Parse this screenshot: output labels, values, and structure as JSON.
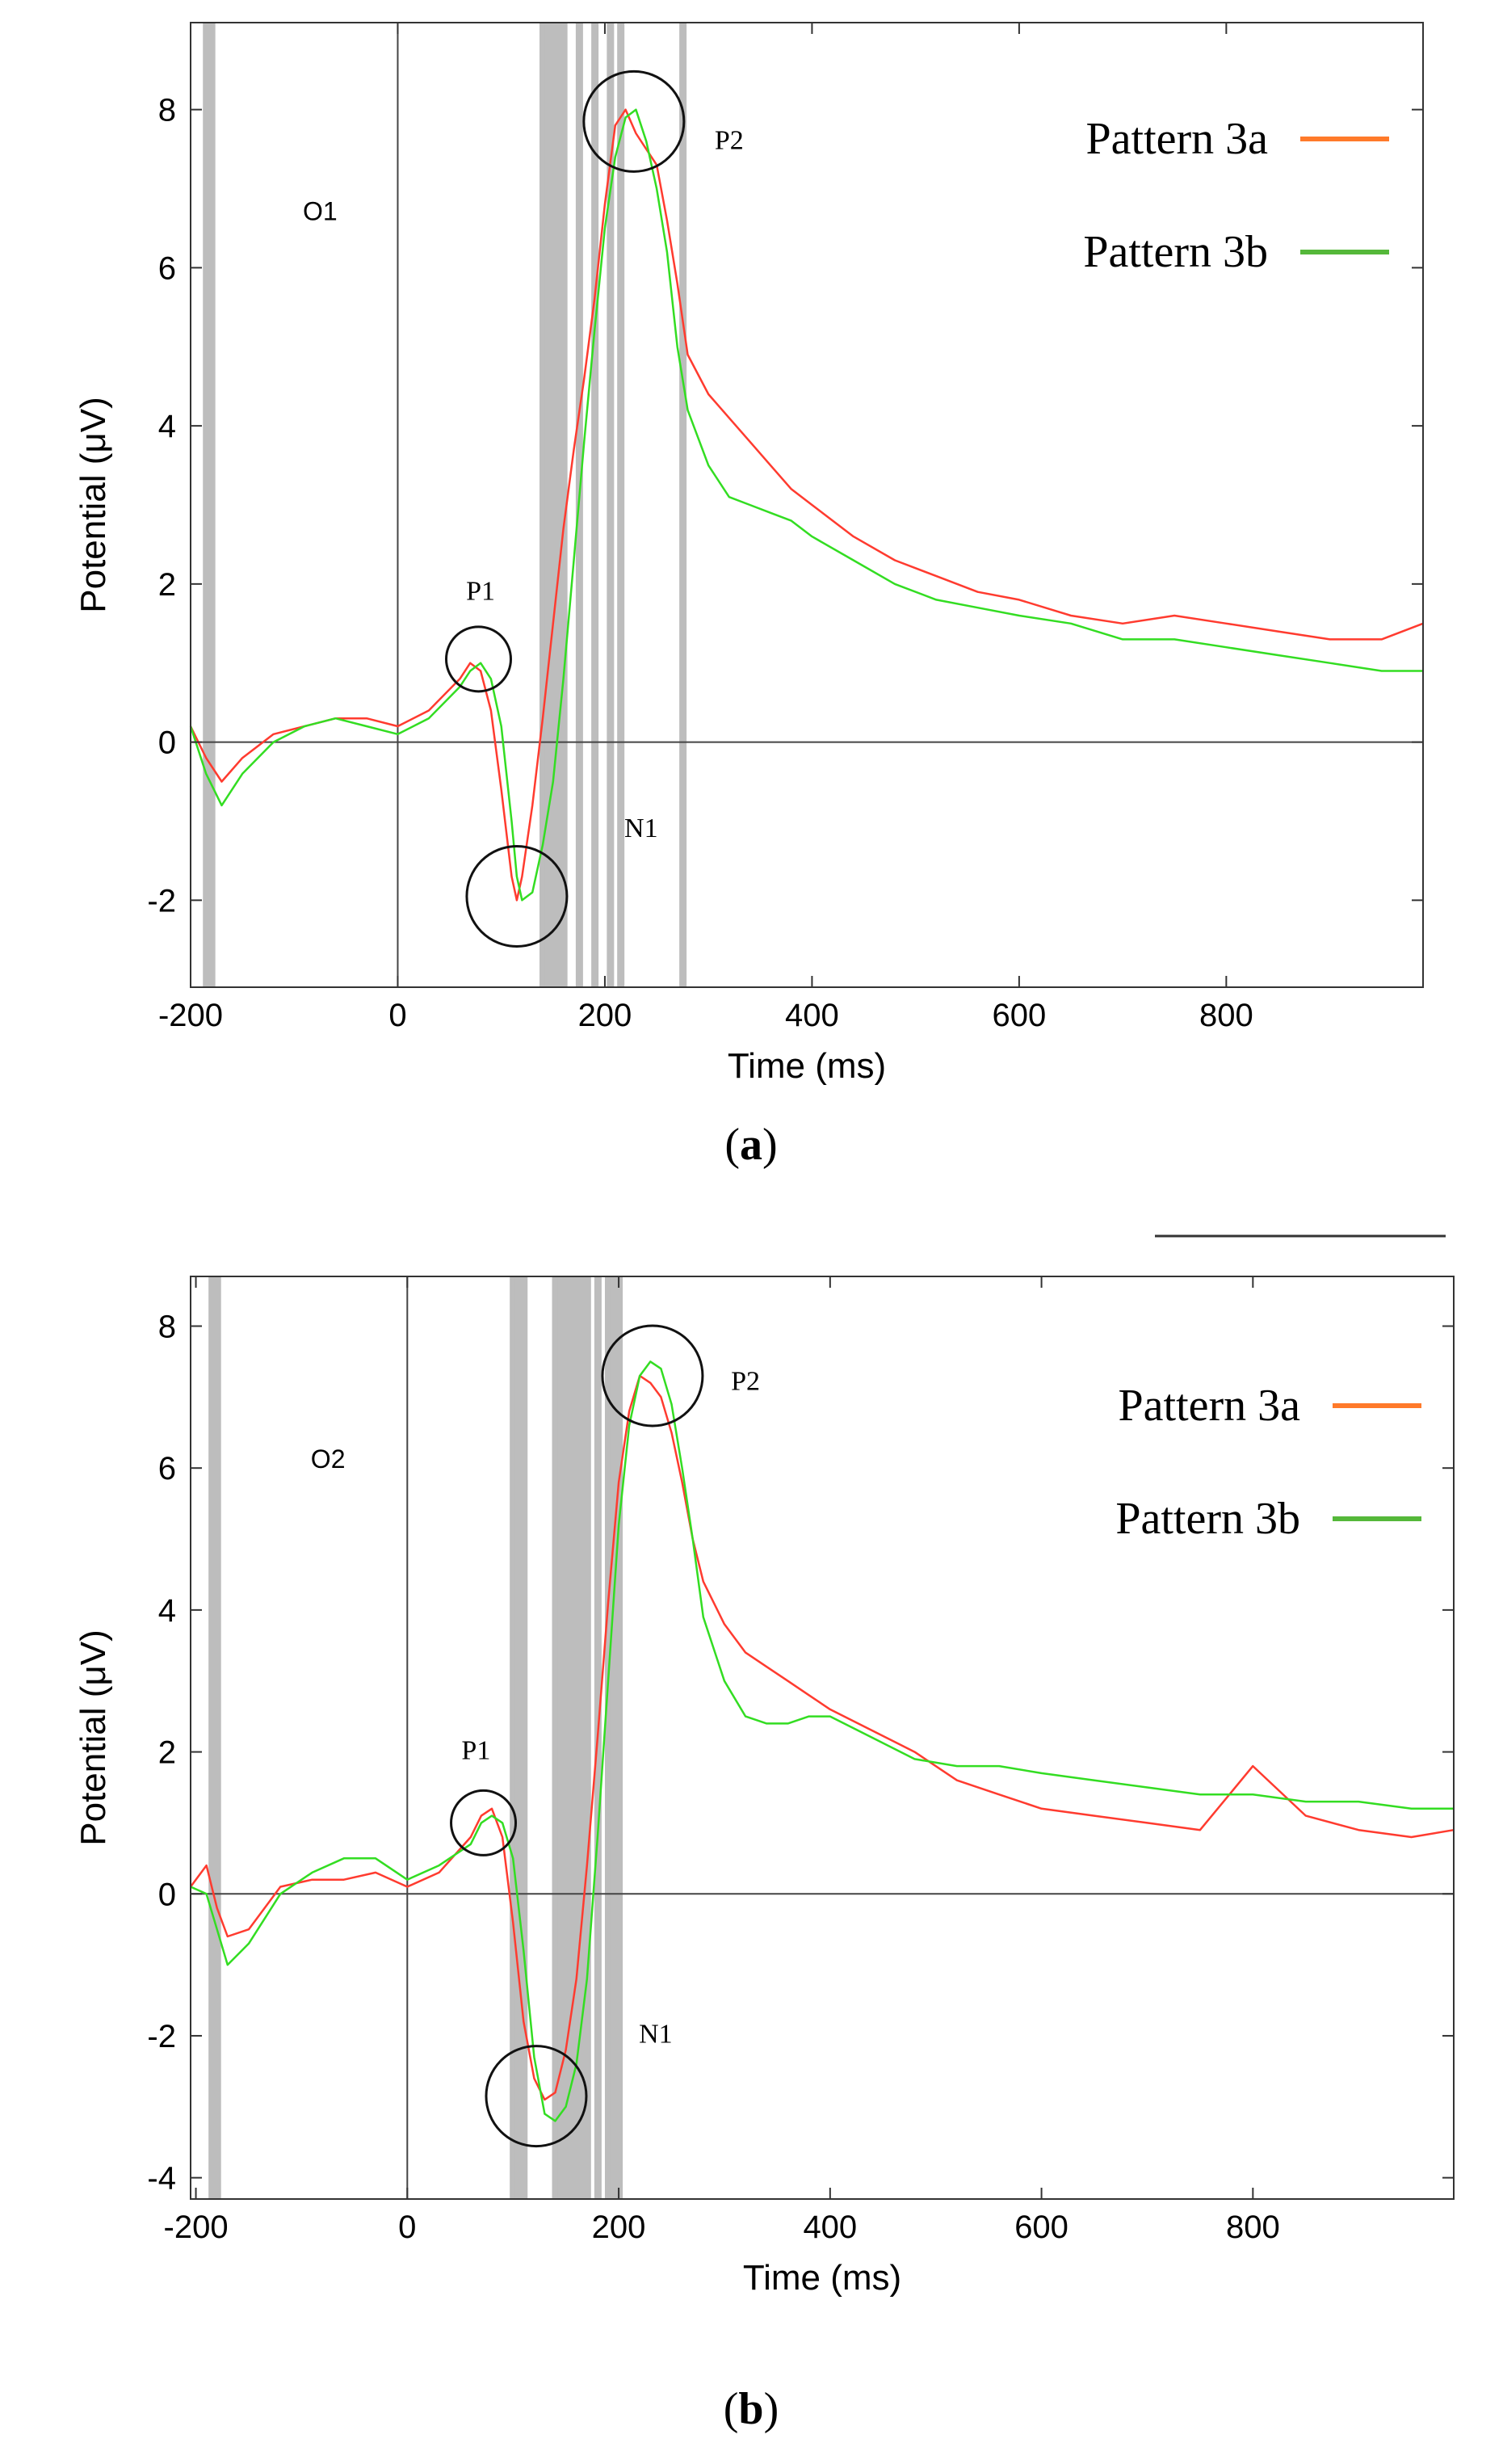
{
  "colors": {
    "pattern_a": "#ff3b2f",
    "pattern_b": "#33dd22",
    "legend_a": "#ff7a2a",
    "legend_b": "#55b83a",
    "shade": "#bdbdbd"
  },
  "chart_data": [
    {
      "type": "line",
      "panel_label": "a",
      "electrode": "O1",
      "xlabel": "Time (ms)",
      "ylabel": "Potential (μV)",
      "xlim": [
        -200,
        990
      ],
      "ylim": [
        -3.1,
        9.1
      ],
      "xticks": [
        -200,
        0,
        200,
        400,
        600,
        800
      ],
      "yticks": [
        -2,
        0,
        2,
        4,
        6,
        8
      ],
      "shaded_ms": [
        -185,
        -180,
        140,
        145,
        150,
        155,
        160,
        175,
        190,
        205,
        215,
        275
      ],
      "legend": [
        "Pattern 3a",
        "Pattern 3b"
      ],
      "annotations": [
        {
          "text": "P1",
          "x": 80,
          "y": 1.8
        },
        {
          "text": "N1",
          "x": 235,
          "y": -1.2
        },
        {
          "text": "P2",
          "x": 320,
          "y": 7.5
        }
      ],
      "circles": [
        {
          "x": 78,
          "y": 1.05
        },
        {
          "x": 115,
          "y": -1.95
        },
        {
          "x": 228,
          "y": 7.85
        }
      ],
      "series": [
        {
          "name": "Pattern 3a",
          "x": [
            -200,
            -185,
            -170,
            -150,
            -120,
            -90,
            -60,
            -30,
            0,
            30,
            60,
            70,
            80,
            90,
            100,
            110,
            115,
            120,
            130,
            140,
            150,
            160,
            170,
            180,
            190,
            200,
            210,
            220,
            230,
            240,
            250,
            260,
            270,
            280,
            300,
            320,
            340,
            360,
            380,
            400,
            440,
            480,
            520,
            560,
            600,
            650,
            700,
            750,
            800,
            850,
            900,
            950,
            990
          ],
          "values": [
            0.2,
            -0.2,
            -0.5,
            -0.2,
            0.1,
            0.2,
            0.3,
            0.3,
            0.2,
            0.4,
            0.8,
            1.0,
            0.9,
            0.4,
            -0.6,
            -1.7,
            -2.0,
            -1.7,
            -0.8,
            0.3,
            1.5,
            2.7,
            3.7,
            4.6,
            5.6,
            6.8,
            7.8,
            8.0,
            7.7,
            7.5,
            7.3,
            6.6,
            5.8,
            4.9,
            4.4,
            4.1,
            3.8,
            3.5,
            3.2,
            3.0,
            2.6,
            2.3,
            2.1,
            1.9,
            1.8,
            1.6,
            1.5,
            1.6,
            1.5,
            1.4,
            1.3,
            1.3,
            1.5
          ]
        },
        {
          "name": "Pattern 3b",
          "x": [
            -200,
            -185,
            -170,
            -150,
            -120,
            -90,
            -60,
            -30,
            0,
            30,
            60,
            70,
            80,
            90,
            100,
            110,
            115,
            120,
            130,
            140,
            150,
            160,
            170,
            180,
            190,
            200,
            210,
            220,
            230,
            240,
            250,
            260,
            270,
            280,
            300,
            320,
            340,
            360,
            380,
            400,
            440,
            480,
            520,
            560,
            600,
            650,
            700,
            750,
            800,
            850,
            900,
            950,
            990
          ],
          "values": [
            0.2,
            -0.4,
            -0.8,
            -0.4,
            0.0,
            0.2,
            0.3,
            0.2,
            0.1,
            0.3,
            0.7,
            0.9,
            1.0,
            0.8,
            0.2,
            -1.0,
            -1.7,
            -2.0,
            -1.9,
            -1.3,
            -0.5,
            0.8,
            2.3,
            3.8,
            5.2,
            6.5,
            7.4,
            7.9,
            8.0,
            7.6,
            7.0,
            6.2,
            5.0,
            4.2,
            3.5,
            3.1,
            3.0,
            2.9,
            2.8,
            2.6,
            2.3,
            2.0,
            1.8,
            1.7,
            1.6,
            1.5,
            1.3,
            1.3,
            1.2,
            1.1,
            1.0,
            0.9,
            0.9
          ]
        }
      ]
    },
    {
      "type": "line",
      "panel_label": "b",
      "electrode": "O2",
      "xlabel": "Time (ms)",
      "ylabel": "Potential (μV)",
      "xlim": [
        -205,
        990
      ],
      "ylim": [
        -4.3,
        8.7
      ],
      "xticks": [
        -200,
        0,
        200,
        400,
        600,
        800
      ],
      "yticks": [
        -4,
        -2,
        0,
        2,
        4,
        6,
        8
      ],
      "shaded_ms": [
        -185,
        -180,
        100,
        105,
        110,
        140,
        145,
        150,
        155,
        160,
        165,
        170,
        180,
        190,
        195,
        200
      ],
      "legend": [
        "Pattern 3a",
        "Pattern 3b"
      ],
      "annotations": [
        {
          "text": "P1",
          "x": 65,
          "y": 1.9
        },
        {
          "text": "N1",
          "x": 235,
          "y": -2.1
        },
        {
          "text": "P2",
          "x": 320,
          "y": 7.1
        }
      ],
      "circles": [
        {
          "x": 72,
          "y": 1.0
        },
        {
          "x": 122,
          "y": -2.85
        },
        {
          "x": 232,
          "y": 7.3
        }
      ],
      "series": [
        {
          "name": "Pattern 3a",
          "x": [
            -205,
            -190,
            -180,
            -170,
            -150,
            -120,
            -90,
            -60,
            -30,
            0,
            30,
            60,
            70,
            80,
            90,
            100,
            110,
            120,
            130,
            140,
            150,
            160,
            170,
            180,
            190,
            200,
            210,
            220,
            230,
            240,
            250,
            260,
            270,
            280,
            300,
            320,
            340,
            360,
            380,
            400,
            440,
            480,
            520,
            560,
            600,
            650,
            700,
            750,
            800,
            850,
            900,
            950,
            990
          ],
          "values": [
            0.1,
            0.4,
            -0.2,
            -0.6,
            -0.5,
            0.1,
            0.2,
            0.2,
            0.3,
            0.1,
            0.3,
            0.8,
            1.1,
            1.2,
            0.8,
            -0.4,
            -1.8,
            -2.6,
            -2.9,
            -2.8,
            -2.2,
            -1.2,
            0.4,
            2.2,
            4.1,
            5.8,
            6.8,
            7.3,
            7.2,
            7.0,
            6.5,
            5.8,
            5.0,
            4.4,
            3.8,
            3.4,
            3.2,
            3.0,
            2.8,
            2.6,
            2.3,
            2.0,
            1.6,
            1.4,
            1.2,
            1.1,
            1.0,
            0.9,
            1.8,
            1.1,
            0.9,
            0.8,
            0.9
          ]
        },
        {
          "name": "Pattern 3b",
          "x": [
            -205,
            -190,
            -180,
            -170,
            -150,
            -120,
            -90,
            -60,
            -30,
            0,
            30,
            60,
            70,
            80,
            90,
            100,
            110,
            120,
            130,
            140,
            150,
            160,
            170,
            180,
            190,
            200,
            210,
            220,
            230,
            240,
            250,
            260,
            270,
            280,
            300,
            320,
            340,
            360,
            380,
            400,
            440,
            480,
            520,
            560,
            600,
            650,
            700,
            750,
            800,
            850,
            900,
            950,
            990
          ],
          "values": [
            0.1,
            0.0,
            -0.5,
            -1.0,
            -0.7,
            0.0,
            0.3,
            0.5,
            0.5,
            0.2,
            0.4,
            0.7,
            1.0,
            1.1,
            1.0,
            0.5,
            -0.8,
            -2.3,
            -3.1,
            -3.2,
            -3.0,
            -2.4,
            -1.2,
            0.8,
            3.0,
            5.2,
            6.6,
            7.3,
            7.5,
            7.4,
            6.9,
            6.0,
            5.0,
            3.9,
            3.0,
            2.5,
            2.4,
            2.4,
            2.5,
            2.5,
            2.2,
            1.9,
            1.8,
            1.8,
            1.7,
            1.6,
            1.5,
            1.4,
            1.4,
            1.3,
            1.3,
            1.2,
            1.2
          ]
        }
      ]
    }
  ]
}
